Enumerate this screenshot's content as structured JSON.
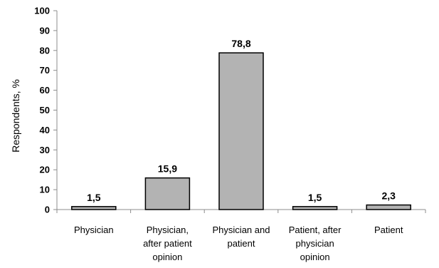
{
  "chart_data": {
    "type": "bar",
    "ylabel": "Respondents, %",
    "xlabel": "",
    "ylim": [
      0,
      100
    ],
    "yticks": [
      0,
      10,
      20,
      30,
      40,
      50,
      60,
      70,
      80,
      90,
      100
    ],
    "categories": [
      [
        "Physician"
      ],
      [
        "Physician,",
        "after patient",
        "opinion"
      ],
      [
        "Physician and",
        "patient"
      ],
      [
        "Patient, after",
        "physician",
        "opinion"
      ],
      [
        "Patient"
      ]
    ],
    "values": [
      1.5,
      15.9,
      78.8,
      1.5,
      2.3
    ],
    "data_labels": [
      "1,5",
      "15,9",
      "78,8",
      "1,5",
      "2,3"
    ],
    "bar_color": "#b3b3b3",
    "bar_stroke": "#000000",
    "grid": false,
    "legend": false
  }
}
